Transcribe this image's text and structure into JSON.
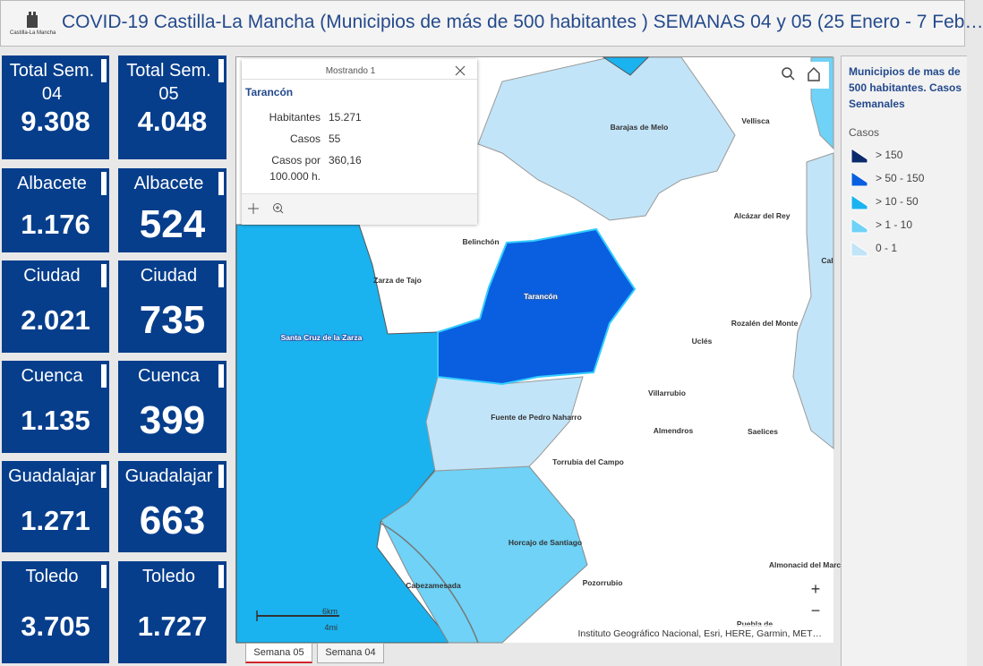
{
  "header": {
    "logo_text": "Castilla-La Mancha",
    "title": "COVID-19 Castilla-La Mancha (Municipios de más de 500 habitantes ) SEMANAS 04 y 05 (25 Enero - 7 Feb…"
  },
  "cards": [
    {
      "title": "Total Sem. 04",
      "value": "9.308"
    },
    {
      "title": "Total Sem. 05",
      "value": "4.048"
    },
    {
      "title": "Albacete",
      "value": "1.176"
    },
    {
      "title": "Albacete",
      "value": "524"
    },
    {
      "title": "Ciudad",
      "value": "2.021"
    },
    {
      "title": "Ciudad",
      "value": "735"
    },
    {
      "title": "Cuenca",
      "value": "1.135"
    },
    {
      "title": "Cuenca",
      "value": "399"
    },
    {
      "title": "Guadalajar",
      "value": "1.271"
    },
    {
      "title": "Guadalajar",
      "value": "663"
    },
    {
      "title": "Toledo",
      "value": "3.705"
    },
    {
      "title": "Toledo",
      "value": "1.727"
    }
  ],
  "popup": {
    "header": "Mostrando 1",
    "name": "Tarancón",
    "fields": [
      {
        "label": "Habitantes",
        "value": "15.271"
      },
      {
        "label": "Casos",
        "value": "55"
      },
      {
        "label": "Casos por 100.000 h.",
        "value": "360,16"
      }
    ]
  },
  "map": {
    "labels": [
      "Barajas de Melo",
      "Vellisca",
      "Alcázar del Rey",
      "Belinchón",
      "Zarza de Tajo",
      "Tarancón",
      "Rozalén del Monte",
      "Uclés",
      "Santa Cruz de la Zarza",
      "Villarrubio",
      "Fuente de Pedro Naharro",
      "Almendros",
      "Saelices",
      "Torrubia del Campo",
      "Horcajo de Santiago",
      "Cabezamesada",
      "Pozorrubio",
      "Almonacid del Marc",
      "Puebla de",
      "Cal"
    ],
    "scale_km": "6km",
    "scale_mi": "4mi",
    "attribution": "Instituto Geográfico Nacional, Esri, HERE, Garmin, MET…",
    "zoom_in": "+",
    "zoom_out": "−"
  },
  "legend": {
    "title": "Municipios de mas de 500 habitantes. Casos Semanales",
    "subtitle": "Casos",
    "items": [
      {
        "label": "> 150",
        "color": "#0b2a6b"
      },
      {
        "label": "> 50 - 150",
        "color": "#0a5fe0"
      },
      {
        "label": "> 10 - 50",
        "color": "#1ab3ef"
      },
      {
        "label": "> 1 - 10",
        "color": "#6fd2f6"
      },
      {
        "label": "0 - 1",
        "color": "#c2e4f8"
      }
    ]
  },
  "tabs": [
    {
      "label": "Semana 05",
      "active": true
    },
    {
      "label": "Semana 04",
      "active": false
    }
  ]
}
